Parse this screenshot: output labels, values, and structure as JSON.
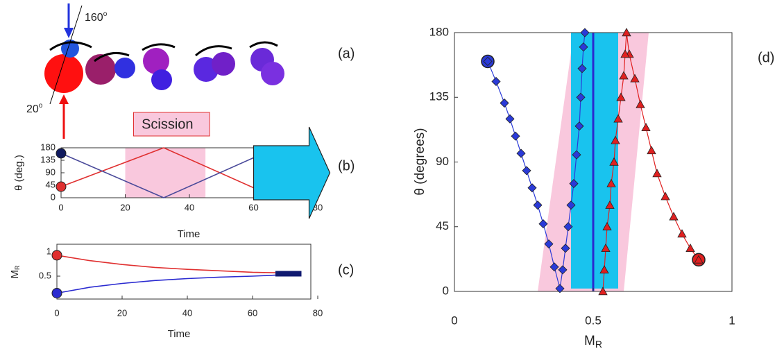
{
  "diagram": {
    "label": "(a)",
    "angle_top": "160",
    "angle_bottom": "20",
    "degree": "o"
  },
  "chart_data": [
    {
      "type": "line",
      "label": "(b)",
      "y_label": "θ (deg.)",
      "x_label": "Time",
      "xlim": [
        0,
        80
      ],
      "ylim": [
        0,
        180
      ],
      "xticks": [
        0,
        20,
        40,
        60,
        80
      ],
      "yticks": [
        0,
        45,
        90,
        135,
        180
      ],
      "band": [
        20,
        45
      ],
      "band_label": "Scission",
      "band_color": "#f9c8dd",
      "arrow_start": 60,
      "arrow_color": "#19c3ee",
      "series": [
        {
          "color": "#e03030",
          "x": [
            0,
            32,
            67,
            75
          ],
          "values": [
            40,
            180,
            0,
            40
          ]
        },
        {
          "color": "#4a4a9a",
          "x": [
            0,
            32,
            67,
            75
          ],
          "values": [
            160,
            0,
            180,
            130
          ]
        }
      ]
    },
    {
      "type": "line",
      "label": "(c)",
      "y_label": "M",
      "y_label_sub": "R",
      "x_label": "Time",
      "xlim": [
        0,
        80
      ],
      "ylim": [
        0,
        1
      ],
      "xticks": [
        0,
        20,
        40,
        60,
        80
      ],
      "yticks": [
        0.5,
        1
      ],
      "bar": {
        "x": [
          67,
          75
        ],
        "value": 0.55,
        "color": "#101a70"
      },
      "series": [
        {
          "color": "#e03030",
          "x": [
            0,
            10,
            20,
            30,
            40,
            50,
            60,
            67
          ],
          "values": [
            0.93,
            0.82,
            0.74,
            0.68,
            0.64,
            0.61,
            0.58,
            0.57
          ]
        },
        {
          "color": "#2a2ad0",
          "x": [
            0,
            10,
            20,
            30,
            40,
            50,
            60,
            67
          ],
          "values": [
            0.15,
            0.27,
            0.35,
            0.41,
            0.45,
            0.48,
            0.5,
            0.52
          ]
        }
      ]
    },
    {
      "type": "scatter",
      "label": "(d)",
      "y_label": "θ (degrees)",
      "x_label": "M",
      "x_label_sub": "R",
      "xlim": [
        0,
        1
      ],
      "ylim": [
        0,
        180
      ],
      "xticks": [
        0,
        0.5,
        1
      ],
      "yticks": [
        0,
        45,
        90,
        135,
        180
      ],
      "pink_region": {
        "color": "#f9c8dd",
        "x_bottom": [
          0.3,
          0.61
        ],
        "x_top": [
          0.43,
          0.7
        ]
      },
      "cyan_region": {
        "color": "#19c3ee",
        "x": [
          0.42,
          0.59
        ],
        "y": [
          2,
          180
        ]
      },
      "vline": {
        "x": 0.5,
        "color": "#2a2ad0"
      },
      "series": [
        {
          "marker": "diamond",
          "color": "#2a3ad8",
          "x": [
            0.12,
            0.15,
            0.18,
            0.2,
            0.22,
            0.24,
            0.26,
            0.28,
            0.3,
            0.32,
            0.34,
            0.36,
            0.38,
            0.39,
            0.4,
            0.41,
            0.42,
            0.43,
            0.44,
            0.45,
            0.455,
            0.46,
            0.465,
            0.47
          ],
          "values": [
            160,
            146,
            131,
            120,
            108,
            96,
            84,
            72,
            60,
            47,
            33,
            17,
            2,
            15,
            30,
            45,
            60,
            75,
            95,
            115,
            135,
            155,
            170,
            180
          ]
        },
        {
          "marker": "triangle",
          "color": "#e02020",
          "x": [
            0.88,
            0.85,
            0.82,
            0.79,
            0.76,
            0.73,
            0.71,
            0.69,
            0.67,
            0.65,
            0.63,
            0.62,
            0.615,
            0.61,
            0.6,
            0.59,
            0.58,
            0.575,
            0.565,
            0.56,
            0.55,
            0.545,
            0.54,
            0.535
          ],
          "values": [
            22,
            30,
            40,
            52,
            66,
            82,
            98,
            114,
            130,
            148,
            165,
            180,
            165,
            150,
            135,
            120,
            105,
            90,
            75,
            60,
            45,
            30,
            15,
            0
          ]
        }
      ]
    }
  ]
}
